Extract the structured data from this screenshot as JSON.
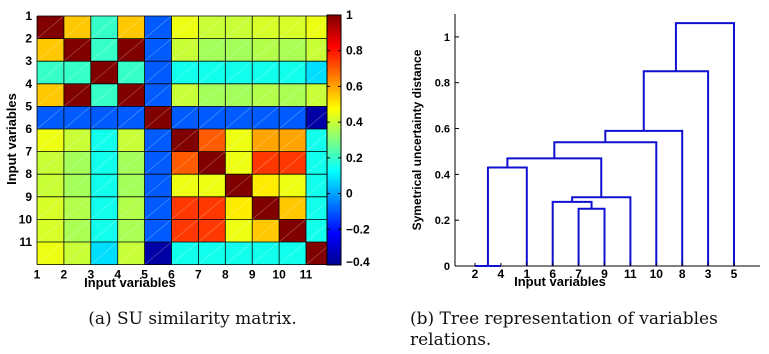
{
  "chart_data": [
    {
      "type": "heatmap",
      "caption": "(a) SU similarity matrix.",
      "xlabel": "Input variables",
      "ylabel": "Input variables",
      "x_ticks": [
        "1",
        "2",
        "3",
        "4",
        "5",
        "6",
        "7",
        "8",
        "9",
        "10",
        "11"
      ],
      "y_ticks": [
        "1",
        "2",
        "3",
        "4",
        "5",
        "6",
        "7",
        "8",
        "9",
        "10",
        "11"
      ],
      "colorbar": {
        "range": [
          -0.4,
          1
        ],
        "ticks": [
          "1",
          "0.8",
          "0.6",
          "0.4",
          "0.2",
          "0",
          "−0.2",
          "−0.4"
        ],
        "tick_values": [
          1,
          0.8,
          0.6,
          0.4,
          0.2,
          0,
          -0.2,
          -0.4
        ],
        "colormap": "jet"
      },
      "matrix": [
        [
          1.0,
          0.55,
          0.2,
          0.55,
          -0.1,
          0.45,
          0.4,
          0.4,
          0.42,
          0.42,
          0.45
        ],
        [
          0.55,
          1.0,
          0.2,
          1.0,
          -0.1,
          0.4,
          0.35,
          0.35,
          0.37,
          0.36,
          0.4
        ],
        [
          0.2,
          0.2,
          1.0,
          0.2,
          -0.1,
          0.15,
          0.15,
          0.15,
          0.15,
          0.15,
          0.08
        ],
        [
          0.55,
          1.0,
          0.2,
          1.0,
          -0.1,
          0.4,
          0.35,
          0.35,
          0.37,
          0.36,
          0.4
        ],
        [
          -0.1,
          -0.1,
          -0.1,
          -0.1,
          1.0,
          -0.1,
          -0.1,
          -0.1,
          -0.1,
          -0.1,
          -0.35
        ],
        [
          0.45,
          0.4,
          0.15,
          0.4,
          -0.1,
          1.0,
          0.7,
          0.45,
          0.6,
          0.6,
          0.15
        ],
        [
          0.4,
          0.35,
          0.15,
          0.35,
          -0.1,
          0.7,
          1.0,
          0.45,
          0.75,
          0.75,
          0.15
        ],
        [
          0.4,
          0.35,
          0.15,
          0.35,
          -0.1,
          0.45,
          0.45,
          1.0,
          0.5,
          0.45,
          0.15
        ],
        [
          0.42,
          0.37,
          0.15,
          0.37,
          -0.1,
          0.75,
          0.75,
          0.5,
          1.0,
          0.55,
          0.15
        ],
        [
          0.42,
          0.36,
          0.15,
          0.36,
          -0.1,
          0.75,
          0.75,
          0.45,
          0.55,
          1.0,
          0.15
        ],
        [
          0.45,
          0.4,
          0.08,
          0.4,
          -0.35,
          0.15,
          0.15,
          0.15,
          0.15,
          0.15,
          1.0
        ]
      ]
    },
    {
      "type": "dendrogram",
      "caption": "(b) Tree representation of variables relations.",
      "xlabel": "Input variables",
      "ylabel": "Symetrical uncertainty distance",
      "ylim": [
        0,
        1.1
      ],
      "y_ticks": [
        "0",
        "0.2",
        "0.4",
        "0.6",
        "0.8",
        "1"
      ],
      "y_tick_values": [
        0,
        0.2,
        0.4,
        0.6,
        0.8,
        1
      ],
      "leaf_order": [
        "2",
        "4",
        "1",
        "6",
        "7",
        "9",
        "11",
        "10",
        "8",
        "3",
        "5"
      ],
      "color": "#1010d0",
      "links": [
        {
          "a": "2",
          "b": "4",
          "height": 0.0
        },
        {
          "a": "2,4",
          "b": "1",
          "height": 0.43
        },
        {
          "a": "7",
          "b": "9",
          "height": 0.25
        },
        {
          "a": "6",
          "b": "7,9",
          "height": 0.28
        },
        {
          "a": "6,7,9",
          "b": "11",
          "height": 0.3
        },
        {
          "a": "1,2,4",
          "b": "6,7,9,11",
          "height": 0.47
        },
        {
          "a": "1,2,4,6,7,9,11",
          "b": "10",
          "height": 0.54
        },
        {
          "a": "1,2,4,6,7,9,10,11",
          "b": "8",
          "height": 0.59
        },
        {
          "a": "1,2,4,6,7,8,9,10,11",
          "b": "3",
          "height": 0.85
        },
        {
          "a": "1,2,3,4,6,7,8,9,10,11",
          "b": "5",
          "height": 1.06
        }
      ]
    }
  ]
}
